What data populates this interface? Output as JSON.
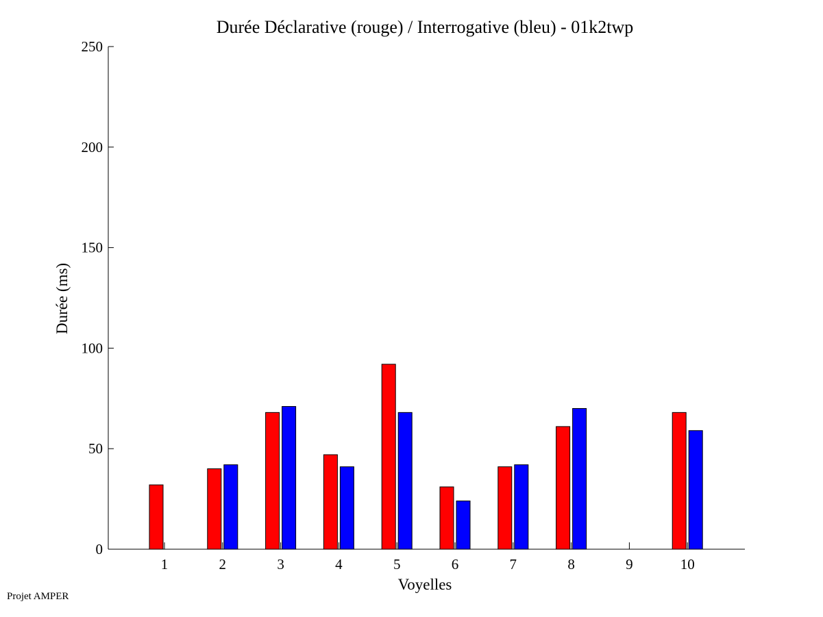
{
  "credit": "Projet AMPER",
  "chart_data": {
    "type": "bar",
    "title": "Durée Déclarative (rouge) / Interrogative (bleu) - 01k2twp",
    "xlabel": "Voyelles",
    "ylabel": "Durée (ms)",
    "categories": [
      "1",
      "2",
      "3",
      "4",
      "5",
      "6",
      "7",
      "8",
      "9",
      "10"
    ],
    "ylim": [
      0,
      250
    ],
    "yticks": [
      "0",
      "50",
      "100",
      "150",
      "200",
      "250"
    ],
    "grid": false,
    "series": [
      {
        "color": "#ff0000",
        "values": [
          32,
          40,
          68,
          47,
          92,
          31,
          41,
          61,
          null,
          68
        ]
      },
      {
        "color": "#0000ff",
        "values": [
          null,
          42,
          71,
          41,
          68,
          24,
          42,
          70,
          null,
          59
        ]
      }
    ]
  }
}
